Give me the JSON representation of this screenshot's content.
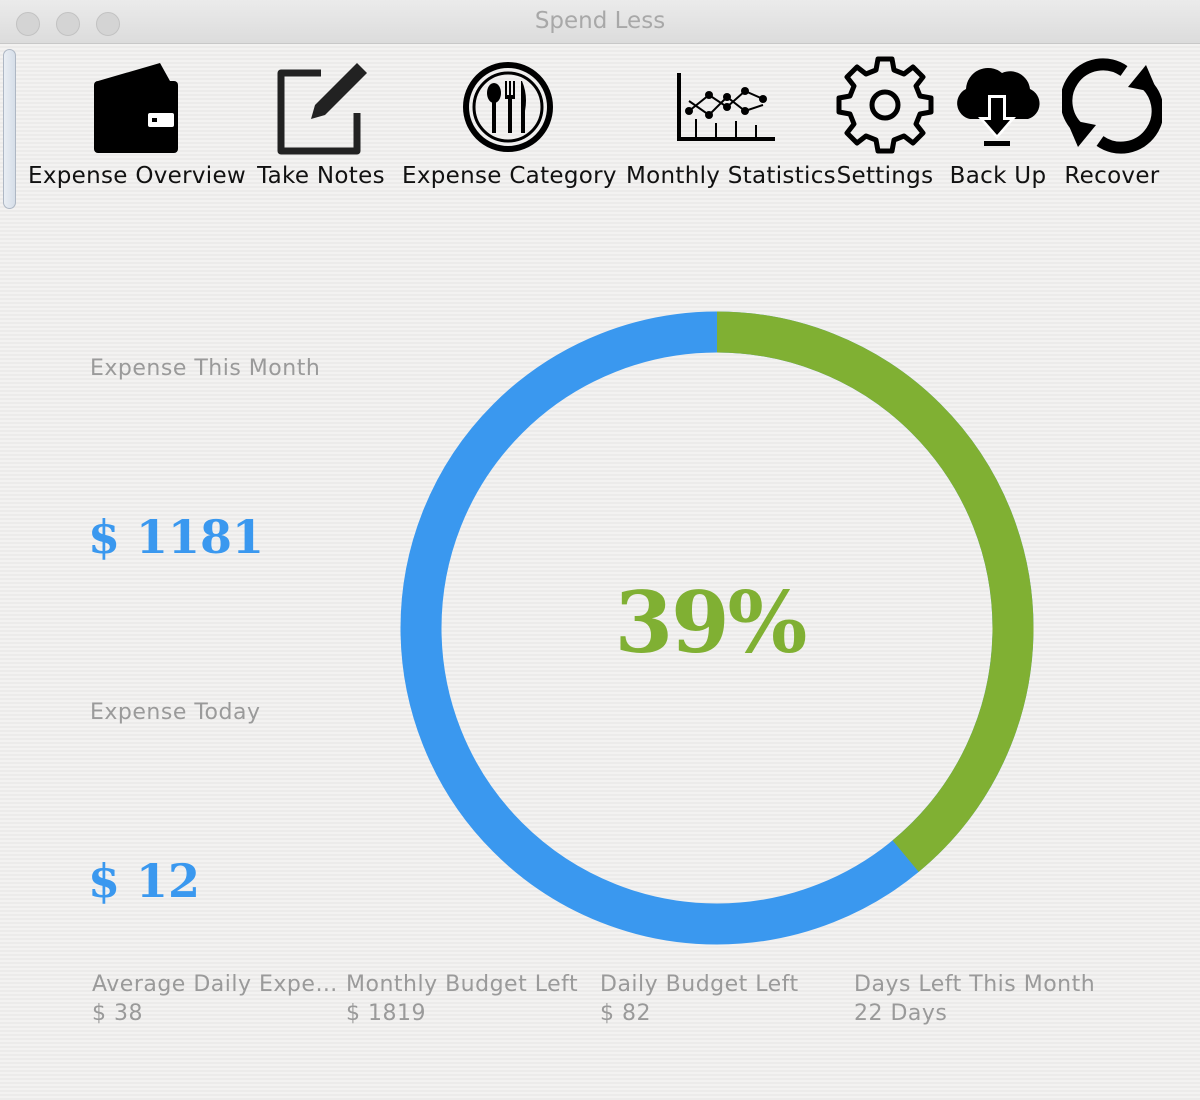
{
  "window": {
    "title": "Spend Less"
  },
  "toolbar": [
    {
      "label": "Expense Overview",
      "icon": "wallet-icon"
    },
    {
      "label": "Take Notes",
      "icon": "edit-note-icon"
    },
    {
      "label": "Expense Category",
      "icon": "cutlery-icon"
    },
    {
      "label": "Monthly Statistics",
      "icon": "line-chart-icon"
    },
    {
      "label": "Settings",
      "icon": "gear-icon"
    },
    {
      "label": "Back Up",
      "icon": "cloud-download-icon"
    },
    {
      "label": "Recover",
      "icon": "refresh-icon"
    }
  ],
  "overview": {
    "month_label": "Expense This Month",
    "month_value": "$ 1181",
    "today_label": "Expense Today",
    "today_value": "$ 12"
  },
  "progress": {
    "percent_text": "39%",
    "fraction": 0.39
  },
  "stats": [
    {
      "label": "Average Daily Expense",
      "value": "$ 38"
    },
    {
      "label": "Monthly Budget Left",
      "value": "$ 1819"
    },
    {
      "label": "Daily Budget Left",
      "value": "$ 82"
    },
    {
      "label": "Days Left This Month",
      "value": "22 Days"
    }
  ],
  "colors": {
    "spent": "#80b033",
    "remaining": "#3a98ef",
    "value_text": "#3a98ef",
    "label_text": "#9a9a9a"
  }
}
